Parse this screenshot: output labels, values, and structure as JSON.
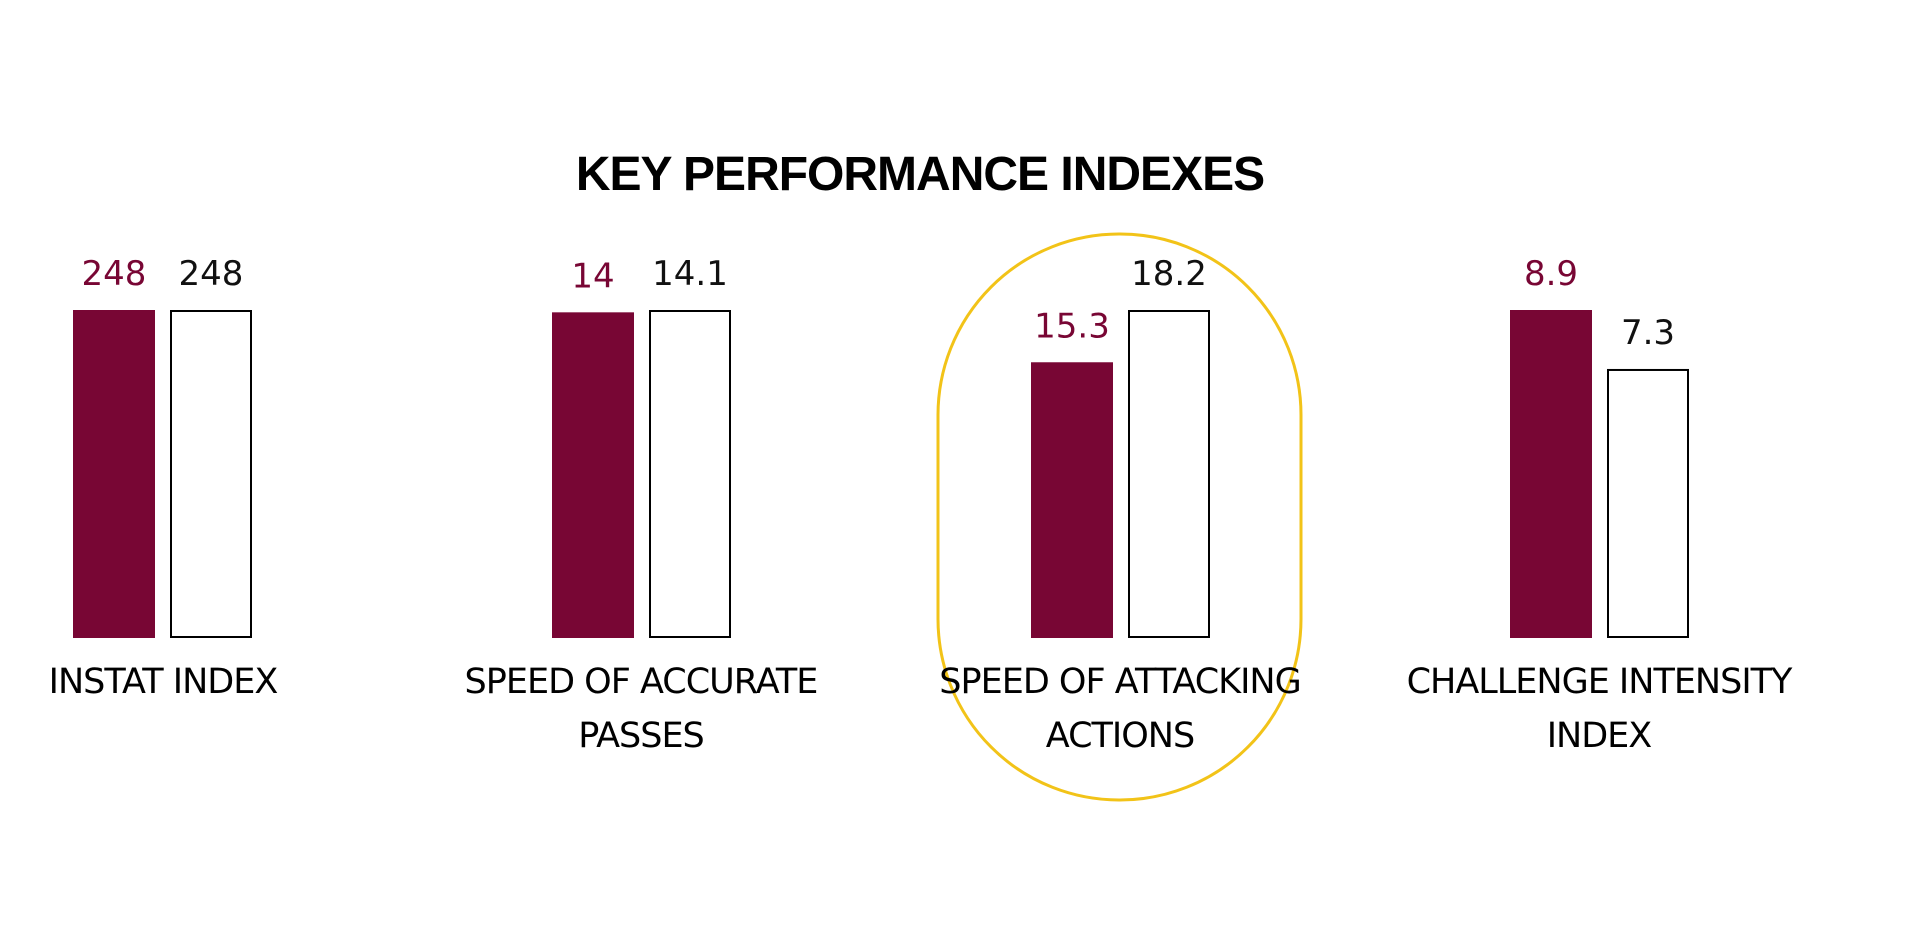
{
  "chart_data": {
    "type": "bar",
    "title": "KEY PERFORMANCE INDEXES",
    "xlabel": "",
    "ylabel": "",
    "grid": false,
    "legend": "none",
    "groups": [
      {
        "label_lines": [
          "INSTAT INDEX"
        ],
        "values": [
          248,
          248
        ],
        "display": [
          "248",
          "248"
        ],
        "highlighted": false
      },
      {
        "label_lines": [
          "SPEED OF ACCURATE",
          "PASSES"
        ],
        "values": [
          14,
          14.1
        ],
        "display": [
          "14",
          "14.1"
        ],
        "highlighted": false
      },
      {
        "label_lines": [
          "SPEED OF ATTACKING",
          "ACTIONS"
        ],
        "values": [
          15.3,
          18.2
        ],
        "display": [
          "15.3",
          "18.2"
        ],
        "highlighted": true
      },
      {
        "label_lines": [
          "CHALLENGE INTENSITY",
          "INDEX"
        ],
        "values": [
          8.9,
          7.3
        ],
        "display": [
          "8.9",
          "7.3"
        ],
        "highlighted": false
      }
    ],
    "colors": {
      "series_a_fill": "#780634",
      "series_a_label": "#780634",
      "series_b_fill": "#ffffff",
      "series_b_stroke": "#000000",
      "series_b_label": "#111111",
      "highlight": "#f2c318",
      "text": "#000000"
    }
  }
}
